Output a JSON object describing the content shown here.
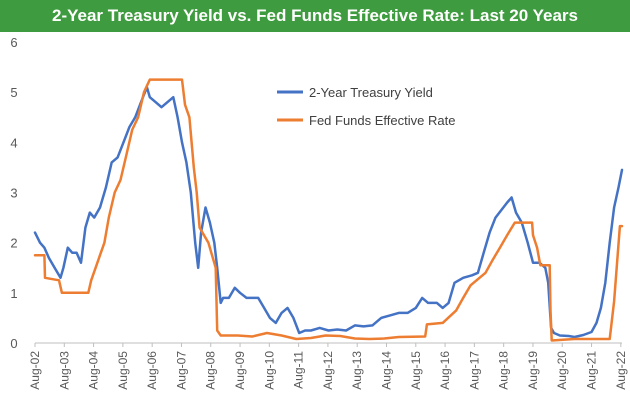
{
  "colors": {
    "title_bg": "#3f9b3f",
    "title_text": "#ffffff",
    "treasury": "#4472c4",
    "fedfunds": "#ed7d31",
    "axis_text": "#595959"
  },
  "chart_data": {
    "type": "line",
    "title": "2-Year Treasury Yield vs. Fed Funds Effective Rate: Last 20 Years",
    "xlabel": "",
    "ylabel": "",
    "ylim": [
      0,
      6
    ],
    "xlim": [
      2002.58,
      2022.62
    ],
    "y_ticks": [
      "0",
      "1",
      "2",
      "3",
      "4",
      "5",
      "6"
    ],
    "x_tick_labels": [
      "Aug-02",
      "Aug-03",
      "Aug-04",
      "Aug-05",
      "Aug-06",
      "Aug-07",
      "Aug-08",
      "Aug-09",
      "Aug-10",
      "Aug-11",
      "Aug-12",
      "Aug-13",
      "Aug-14",
      "Aug-15",
      "Aug-16",
      "Aug-17",
      "Aug-18",
      "Aug-19",
      "Aug-20",
      "Aug-21",
      "Aug-22"
    ],
    "x_tick_values": [
      2002.58,
      2003.58,
      2004.58,
      2005.58,
      2006.58,
      2007.58,
      2008.58,
      2009.58,
      2010.58,
      2011.58,
      2012.58,
      2013.58,
      2014.58,
      2015.58,
      2016.58,
      2017.58,
      2018.58,
      2019.58,
      2020.58,
      2021.58,
      2022.58
    ],
    "grid": false,
    "legend_position": "top-center",
    "series": [
      {
        "name": "2-Year Treasury Yield",
        "color": "#4472c4",
        "points": [
          [
            2002.58,
            2.2
          ],
          [
            2002.75,
            2.0
          ],
          [
            2002.9,
            1.9
          ],
          [
            2003.05,
            1.7
          ],
          [
            2003.25,
            1.5
          ],
          [
            2003.45,
            1.3
          ],
          [
            2003.55,
            1.5
          ],
          [
            2003.7,
            1.9
          ],
          [
            2003.85,
            1.8
          ],
          [
            2004.0,
            1.8
          ],
          [
            2004.15,
            1.6
          ],
          [
            2004.3,
            2.3
          ],
          [
            2004.45,
            2.6
          ],
          [
            2004.6,
            2.5
          ],
          [
            2004.8,
            2.7
          ],
          [
            2005.0,
            3.1
          ],
          [
            2005.2,
            3.6
          ],
          [
            2005.4,
            3.7
          ],
          [
            2005.6,
            4.0
          ],
          [
            2005.8,
            4.3
          ],
          [
            2006.0,
            4.5
          ],
          [
            2006.2,
            4.8
          ],
          [
            2006.4,
            5.1
          ],
          [
            2006.5,
            4.9
          ],
          [
            2006.7,
            4.8
          ],
          [
            2006.9,
            4.7
          ],
          [
            2007.1,
            4.8
          ],
          [
            2007.3,
            4.9
          ],
          [
            2007.45,
            4.5
          ],
          [
            2007.6,
            4.0
          ],
          [
            2007.75,
            3.6
          ],
          [
            2007.9,
            3.0
          ],
          [
            2008.05,
            2.0
          ],
          [
            2008.15,
            1.5
          ],
          [
            2008.25,
            2.2
          ],
          [
            2008.4,
            2.7
          ],
          [
            2008.55,
            2.4
          ],
          [
            2008.7,
            2.0
          ],
          [
            2008.8,
            1.5
          ],
          [
            2008.92,
            0.8
          ],
          [
            2009.0,
            0.9
          ],
          [
            2009.2,
            0.9
          ],
          [
            2009.4,
            1.1
          ],
          [
            2009.58,
            1.0
          ],
          [
            2009.8,
            0.9
          ],
          [
            2010.0,
            0.9
          ],
          [
            2010.2,
            0.9
          ],
          [
            2010.4,
            0.7
          ],
          [
            2010.6,
            0.5
          ],
          [
            2010.8,
            0.4
          ],
          [
            2011.0,
            0.6
          ],
          [
            2011.2,
            0.7
          ],
          [
            2011.4,
            0.5
          ],
          [
            2011.6,
            0.2
          ],
          [
            2011.8,
            0.25
          ],
          [
            2012.0,
            0.25
          ],
          [
            2012.3,
            0.3
          ],
          [
            2012.6,
            0.25
          ],
          [
            2012.9,
            0.27
          ],
          [
            2013.2,
            0.25
          ],
          [
            2013.5,
            0.35
          ],
          [
            2013.8,
            0.33
          ],
          [
            2014.1,
            0.35
          ],
          [
            2014.4,
            0.5
          ],
          [
            2014.7,
            0.55
          ],
          [
            2015.0,
            0.6
          ],
          [
            2015.3,
            0.6
          ],
          [
            2015.58,
            0.7
          ],
          [
            2015.8,
            0.9
          ],
          [
            2016.0,
            0.8
          ],
          [
            2016.3,
            0.8
          ],
          [
            2016.5,
            0.7
          ],
          [
            2016.7,
            0.8
          ],
          [
            2016.9,
            1.2
          ],
          [
            2017.2,
            1.3
          ],
          [
            2017.5,
            1.35
          ],
          [
            2017.7,
            1.4
          ],
          [
            2017.9,
            1.8
          ],
          [
            2018.1,
            2.2
          ],
          [
            2018.3,
            2.5
          ],
          [
            2018.5,
            2.65
          ],
          [
            2018.7,
            2.8
          ],
          [
            2018.85,
            2.9
          ],
          [
            2019.0,
            2.6
          ],
          [
            2019.2,
            2.4
          ],
          [
            2019.4,
            2.0
          ],
          [
            2019.58,
            1.6
          ],
          [
            2019.8,
            1.6
          ],
          [
            2020.0,
            1.5
          ],
          [
            2020.1,
            1.2
          ],
          [
            2020.2,
            0.3
          ],
          [
            2020.3,
            0.2
          ],
          [
            2020.5,
            0.15
          ],
          [
            2020.8,
            0.14
          ],
          [
            2021.0,
            0.12
          ],
          [
            2021.3,
            0.16
          ],
          [
            2021.58,
            0.22
          ],
          [
            2021.75,
            0.4
          ],
          [
            2021.9,
            0.7
          ],
          [
            2022.05,
            1.2
          ],
          [
            2022.2,
            2.0
          ],
          [
            2022.35,
            2.7
          ],
          [
            2022.5,
            3.1
          ],
          [
            2022.62,
            3.45
          ]
        ]
      },
      {
        "name": "Fed Funds Effective Rate",
        "color": "#ed7d31",
        "points": [
          [
            2002.58,
            1.75
          ],
          [
            2002.9,
            1.75
          ],
          [
            2002.92,
            1.3
          ],
          [
            2003.4,
            1.25
          ],
          [
            2003.5,
            1.0
          ],
          [
            2004.4,
            1.0
          ],
          [
            2004.5,
            1.25
          ],
          [
            2004.65,
            1.5
          ],
          [
            2004.8,
            1.75
          ],
          [
            2004.95,
            2.0
          ],
          [
            2005.1,
            2.5
          ],
          [
            2005.3,
            3.0
          ],
          [
            2005.5,
            3.25
          ],
          [
            2005.7,
            3.75
          ],
          [
            2005.9,
            4.25
          ],
          [
            2006.1,
            4.5
          ],
          [
            2006.3,
            5.0
          ],
          [
            2006.5,
            5.25
          ],
          [
            2007.6,
            5.25
          ],
          [
            2007.7,
            4.75
          ],
          [
            2007.85,
            4.5
          ],
          [
            2008.0,
            3.5
          ],
          [
            2008.1,
            3.0
          ],
          [
            2008.2,
            2.3
          ],
          [
            2008.5,
            2.0
          ],
          [
            2008.75,
            1.5
          ],
          [
            2008.8,
            0.25
          ],
          [
            2008.92,
            0.15
          ],
          [
            2009.5,
            0.15
          ],
          [
            2010.0,
            0.13
          ],
          [
            2010.5,
            0.2
          ],
          [
            2011.0,
            0.15
          ],
          [
            2011.5,
            0.08
          ],
          [
            2012.0,
            0.1
          ],
          [
            2012.5,
            0.15
          ],
          [
            2013.0,
            0.14
          ],
          [
            2013.5,
            0.09
          ],
          [
            2014.0,
            0.08
          ],
          [
            2014.5,
            0.09
          ],
          [
            2015.0,
            0.12
          ],
          [
            2015.9,
            0.13
          ],
          [
            2015.96,
            0.37
          ],
          [
            2016.5,
            0.4
          ],
          [
            2016.96,
            0.65
          ],
          [
            2017.2,
            0.9
          ],
          [
            2017.45,
            1.15
          ],
          [
            2017.96,
            1.4
          ],
          [
            2018.2,
            1.65
          ],
          [
            2018.45,
            1.9
          ],
          [
            2018.7,
            2.15
          ],
          [
            2018.96,
            2.4
          ],
          [
            2019.55,
            2.4
          ],
          [
            2019.58,
            2.15
          ],
          [
            2019.72,
            1.9
          ],
          [
            2019.83,
            1.55
          ],
          [
            2020.15,
            1.55
          ],
          [
            2020.18,
            0.65
          ],
          [
            2020.22,
            0.05
          ],
          [
            2021.0,
            0.08
          ],
          [
            2021.5,
            0.08
          ],
          [
            2022.2,
            0.08
          ],
          [
            2022.25,
            0.33
          ],
          [
            2022.35,
            0.83
          ],
          [
            2022.45,
            1.58
          ],
          [
            2022.55,
            2.33
          ],
          [
            2022.62,
            2.33
          ]
        ]
      }
    ]
  }
}
